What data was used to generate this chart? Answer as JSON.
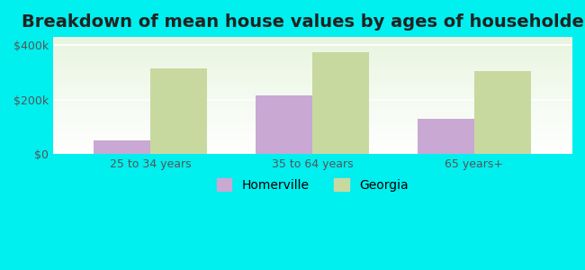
{
  "title": "Breakdown of mean house values by ages of householders",
  "categories": [
    "25 to 34 years",
    "35 to 64 years",
    "65 years+"
  ],
  "homerville_values": [
    50000,
    215000,
    130000
  ],
  "georgia_values": [
    315000,
    375000,
    305000
  ],
  "homerville_color": "#c9a8d4",
  "georgia_color": "#c8d9a0",
  "background_color": "#00efef",
  "plot_bg_gradient_top": "#e8f5e0",
  "plot_bg_gradient_bottom": "#ffffff",
  "yticks": [
    0,
    200000,
    400000
  ],
  "ytick_labels": [
    "$0",
    "$200k",
    "$400k"
  ],
  "ylim": [
    0,
    430000
  ],
  "legend_labels": [
    "Homerville",
    "Georgia"
  ],
  "bar_width": 0.35,
  "title_fontsize": 14,
  "tick_fontsize": 9,
  "legend_fontsize": 10
}
